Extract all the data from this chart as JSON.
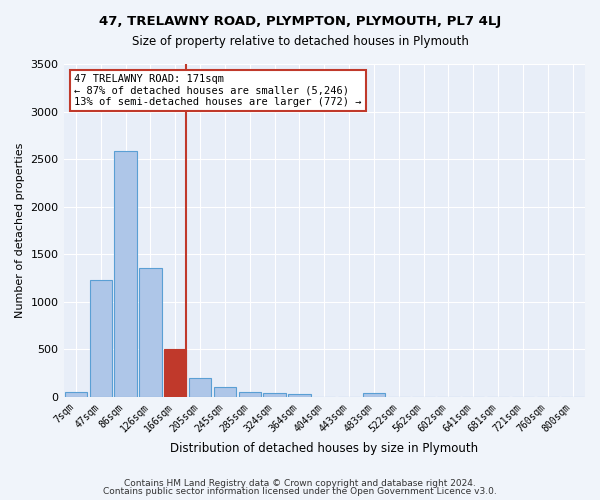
{
  "title": "47, TRELAWNY ROAD, PLYMPTON, PLYMOUTH, PL7 4LJ",
  "subtitle": "Size of property relative to detached houses in Plymouth",
  "xlabel": "Distribution of detached houses by size in Plymouth",
  "ylabel": "Number of detached properties",
  "categories": [
    "7sqm",
    "47sqm",
    "86sqm",
    "126sqm",
    "166sqm",
    "205sqm",
    "245sqm",
    "285sqm",
    "324sqm",
    "364sqm",
    "404sqm",
    "443sqm",
    "483sqm",
    "522sqm",
    "562sqm",
    "602sqm",
    "641sqm",
    "681sqm",
    "721sqm",
    "760sqm",
    "800sqm"
  ],
  "values": [
    55,
    1230,
    2580,
    1350,
    500,
    195,
    105,
    50,
    40,
    30,
    0,
    0,
    35,
    0,
    0,
    0,
    0,
    0,
    0,
    0,
    0
  ],
  "bar_color": "#aec6e8",
  "bar_edgecolor": "#5a9fd4",
  "highlight_index": 4,
  "highlight_color": "#c0392b",
  "annotation_line1": "47 TRELAWNY ROAD: 171sqm",
  "annotation_line2": "← 87% of detached houses are smaller (5,246)",
  "annotation_line3": "13% of semi-detached houses are larger (772) →",
  "footer1": "Contains HM Land Registry data © Crown copyright and database right 2024.",
  "footer2": "Contains public sector information licensed under the Open Government Licence v3.0.",
  "ylim": [
    0,
    3500
  ],
  "background_color": "#f0f4fa",
  "plot_background": "#e8eef8"
}
